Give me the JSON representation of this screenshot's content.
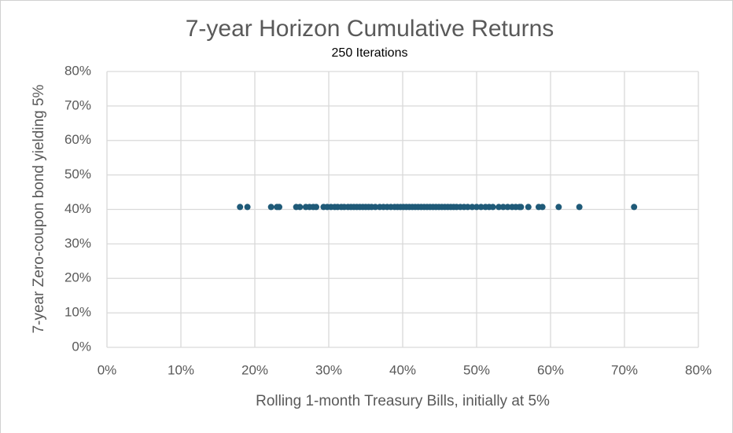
{
  "chart_data": {
    "type": "scatter",
    "title": "7-year Horizon Cumulative Returns",
    "subtitle": "250 Iterations",
    "x_label": "Rolling 1-month Treasury Bills, initially at 5%",
    "y_label": "7-year Zero-coupon bond yielding 5%",
    "color": "#1f5a78",
    "grid": true,
    "xlim": [
      0,
      80
    ],
    "ylim": [
      0,
      80
    ],
    "xticks": [
      {
        "value": 0,
        "label": "0%"
      },
      {
        "value": 10,
        "label": "10%"
      },
      {
        "value": 20,
        "label": "20%"
      },
      {
        "value": 30,
        "label": "30%"
      },
      {
        "value": 40,
        "label": "40%"
      },
      {
        "value": 50,
        "label": "50%"
      },
      {
        "value": 60,
        "label": "60%"
      },
      {
        "value": 70,
        "label": "70%"
      },
      {
        "value": 80,
        "label": "80%"
      }
    ],
    "yticks": [
      {
        "value": 0,
        "label": "0%"
      },
      {
        "value": 10,
        "label": "10%"
      },
      {
        "value": 20,
        "label": "20%"
      },
      {
        "value": 30,
        "label": "30%"
      },
      {
        "value": 40,
        "label": "40%"
      },
      {
        "value": 50,
        "label": "50%"
      },
      {
        "value": 60,
        "label": "60%"
      },
      {
        "value": 70,
        "label": "70%"
      },
      {
        "value": 80,
        "label": "80%"
      }
    ],
    "x": [
      18.0,
      19.0,
      22.2,
      23.0,
      23.3,
      25.6,
      26.1,
      26.9,
      27.4,
      27.9,
      28.3,
      29.3,
      29.8,
      30.3,
      30.8,
      31.2,
      31.7,
      32.1,
      32.6,
      33.0,
      33.4,
      33.8,
      34.2,
      34.6,
      35.0,
      35.4,
      35.8,
      36.3,
      36.9,
      37.4,
      37.9,
      38.4,
      38.9,
      39.3,
      39.7,
      40.1,
      40.5,
      40.9,
      41.3,
      41.7,
      42.1,
      42.5,
      42.9,
      43.3,
      43.7,
      44.1,
      44.5,
      44.9,
      45.3,
      45.7,
      46.1,
      46.5,
      46.9,
      47.3,
      47.8,
      48.3,
      48.8,
      49.4,
      50.0,
      50.6,
      51.2,
      51.7,
      52.2,
      53.0,
      53.6,
      54.2,
      54.8,
      55.3,
      55.8,
      56.0,
      57.0,
      58.4,
      58.9,
      61.1,
      63.9,
      71.3
    ],
    "y": [
      40.7,
      40.7,
      40.7,
      40.7,
      40.7,
      40.7,
      40.7,
      40.7,
      40.7,
      40.7,
      40.7,
      40.7,
      40.7,
      40.7,
      40.7,
      40.7,
      40.7,
      40.7,
      40.7,
      40.7,
      40.7,
      40.7,
      40.7,
      40.7,
      40.7,
      40.7,
      40.7,
      40.7,
      40.7,
      40.7,
      40.7,
      40.7,
      40.7,
      40.7,
      40.7,
      40.7,
      40.7,
      40.7,
      40.7,
      40.7,
      40.7,
      40.7,
      40.7,
      40.7,
      40.7,
      40.7,
      40.7,
      40.7,
      40.7,
      40.7,
      40.7,
      40.7,
      40.7,
      40.7,
      40.7,
      40.7,
      40.7,
      40.7,
      40.7,
      40.7,
      40.7,
      40.7,
      40.7,
      40.7,
      40.7,
      40.7,
      40.7,
      40.7,
      40.7,
      40.7,
      40.7,
      40.7,
      40.7,
      40.7,
      40.7,
      40.7
    ]
  }
}
